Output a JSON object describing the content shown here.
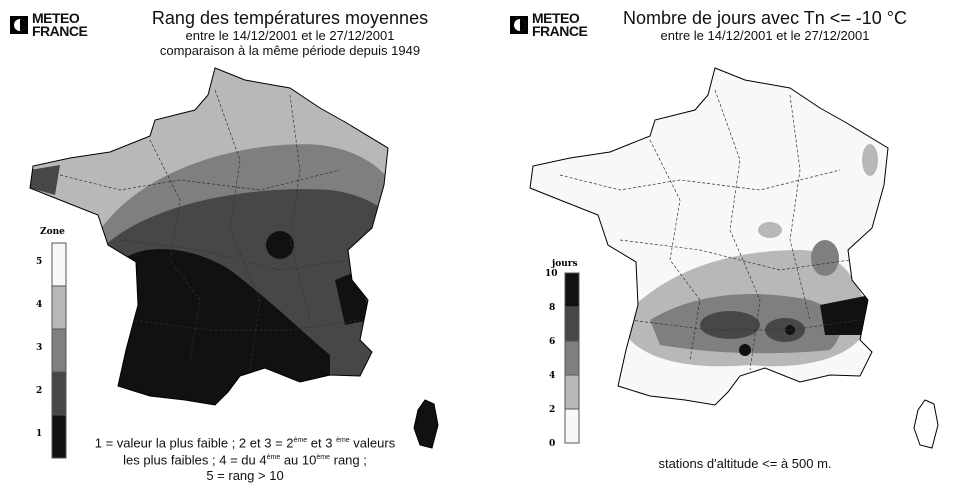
{
  "left": {
    "logo": {
      "line1": "METEO",
      "line2": "FRANCE"
    },
    "title": "Rang des températures moyennes",
    "subtitle1": "entre le 14/12/2001 et le 27/12/2001",
    "subtitle2": "comparaison à la même période depuis 1949",
    "legend": {
      "title": "Zone",
      "labels": [
        "5",
        "4",
        "3",
        "2",
        "1"
      ],
      "colors": [
        "#f8f8f8",
        "#b8b8b8",
        "#7f7f7f",
        "#474747",
        "#111111"
      ]
    },
    "note": {
      "a": "1 = valeur la plus faible ; 2 et 3 = 2",
      "sup1": "ème",
      "b": " et 3 ",
      "sup2": "ème",
      "c": " valeurs",
      "d": "les plus faibles ; 4 = du 4",
      "sup3": "ème",
      "e": " au 10",
      "sup4": "ème",
      "f": " rang ;",
      "g": "5 = rang > 10"
    }
  },
  "right": {
    "logo": {
      "line1": "METEO",
      "line2": "FRANCE"
    },
    "title": "Nombre de jours avec Tn <= -10 °C",
    "subtitle1": "entre le 14/12/2001 et le 27/12/2001",
    "legend": {
      "title": "jours",
      "labels": [
        "10",
        "8",
        "6",
        "4",
        "2",
        "0"
      ],
      "colors": [
        "#111111",
        "#474747",
        "#7f7f7f",
        "#b8b8b8",
        "#f8f8f8"
      ]
    },
    "note": "stations d'altitude <= à 500 m."
  }
}
